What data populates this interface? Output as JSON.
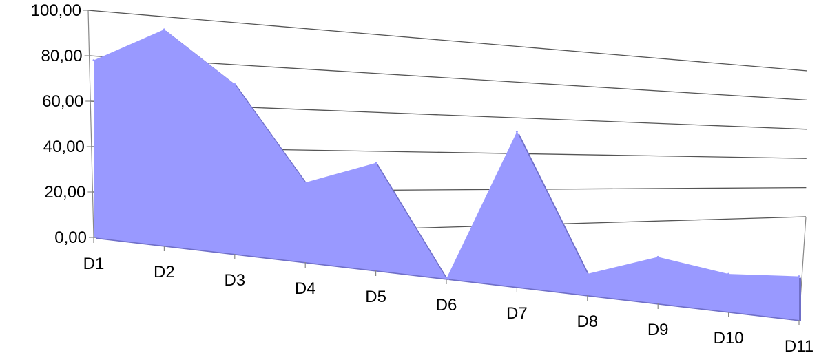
{
  "chart_data": {
    "type": "area",
    "categories": [
      "D1",
      "D2",
      "D3",
      "D4",
      "D5",
      "D6",
      "D7",
      "D8",
      "D9",
      "D10",
      "D11"
    ],
    "series": [
      {
        "values": [
          78,
          96,
          76,
          36,
          49,
          0,
          72,
          10,
          22,
          18,
          21
        ]
      }
    ],
    "yticks": [
      "0,00",
      "20,00",
      "40,00",
      "60,00",
      "80,00",
      "100,00"
    ],
    "ylim": [
      0,
      100
    ],
    "grid": true,
    "legend": "none",
    "colors": {
      "fill": "#9999ff",
      "edge": "#6f6fc8",
      "grid": "#555555",
      "axis": "#888888"
    }
  }
}
